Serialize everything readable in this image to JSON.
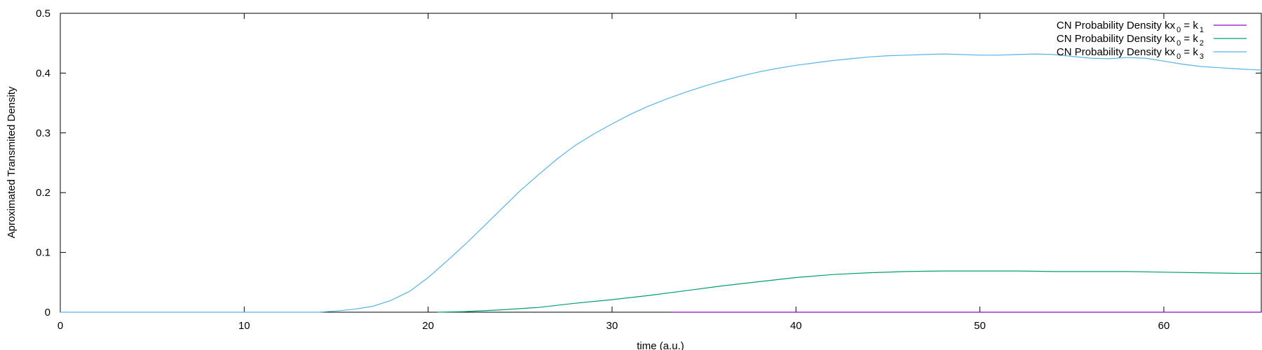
{
  "chart_data": {
    "type": "line",
    "xlabel": "time (a.u.)",
    "ylabel": "Aproximated Transmited Density",
    "xlim": [
      0,
      65.3
    ],
    "ylim": [
      0,
      0.5
    ],
    "xticks": [
      0,
      10,
      20,
      30,
      40,
      50,
      60
    ],
    "yticks": [
      0,
      0.1,
      0.2,
      0.3,
      0.4,
      0.5
    ],
    "xtick_labels": [
      "0",
      "10",
      "20",
      "30",
      "40",
      "50",
      "60"
    ],
    "ytick_labels": [
      "0",
      "0.1",
      "0.2",
      "0.3",
      "0.4",
      "0.5"
    ],
    "legend_position": "top-right",
    "grid": false,
    "series": [
      {
        "name_prefix": "CN Probability Density kx",
        "name_sub1": "0",
        "name_mid": " = k",
        "name_sub2": "1",
        "color": "#9400d3",
        "x": [
          33.3,
          40,
          50,
          60,
          65.3
        ],
        "y": [
          0,
          0,
          0,
          0,
          0
        ]
      },
      {
        "name_prefix": "CN Probability Density kx",
        "name_sub1": "0",
        "name_mid": " = k",
        "name_sub2": "2",
        "color": "#009e73",
        "x": [
          20.5,
          22,
          24,
          26,
          28,
          30,
          32,
          34,
          36,
          38,
          40,
          42,
          44,
          46,
          48,
          50,
          52,
          54,
          56,
          58,
          60,
          62,
          64,
          65.3
        ],
        "y": [
          0,
          0.001,
          0.004,
          0.008,
          0.015,
          0.021,
          0.028,
          0.036,
          0.044,
          0.051,
          0.058,
          0.063,
          0.066,
          0.068,
          0.069,
          0.069,
          0.069,
          0.068,
          0.068,
          0.068,
          0.067,
          0.066,
          0.065,
          0.065
        ]
      },
      {
        "name_prefix": "CN Probability Density kx",
        "name_sub1": "0",
        "name_mid": " = k",
        "name_sub2": "3",
        "color": "#56b4e9",
        "x": [
          0,
          10,
          14,
          15,
          16,
          17,
          18,
          19,
          20,
          21,
          22,
          23,
          24,
          25,
          26,
          27,
          28,
          29,
          30,
          31,
          32,
          33,
          34,
          35,
          36,
          37,
          38,
          39,
          40,
          41,
          42,
          43,
          44,
          45,
          46,
          47,
          48,
          49,
          50,
          51,
          52,
          53,
          54,
          55,
          56,
          57,
          58,
          59,
          60,
          61,
          62,
          63,
          64,
          65.3
        ],
        "y": [
          0,
          0,
          0,
          0.002,
          0.005,
          0.01,
          0.02,
          0.035,
          0.058,
          0.085,
          0.113,
          0.143,
          0.173,
          0.203,
          0.23,
          0.256,
          0.279,
          0.298,
          0.315,
          0.331,
          0.345,
          0.357,
          0.368,
          0.378,
          0.387,
          0.395,
          0.402,
          0.408,
          0.413,
          0.417,
          0.421,
          0.424,
          0.427,
          0.429,
          0.43,
          0.431,
          0.432,
          0.431,
          0.43,
          0.43,
          0.431,
          0.432,
          0.431,
          0.428,
          0.425,
          0.424,
          0.426,
          0.425,
          0.42,
          0.415,
          0.411,
          0.409,
          0.407,
          0.405
        ]
      }
    ]
  }
}
